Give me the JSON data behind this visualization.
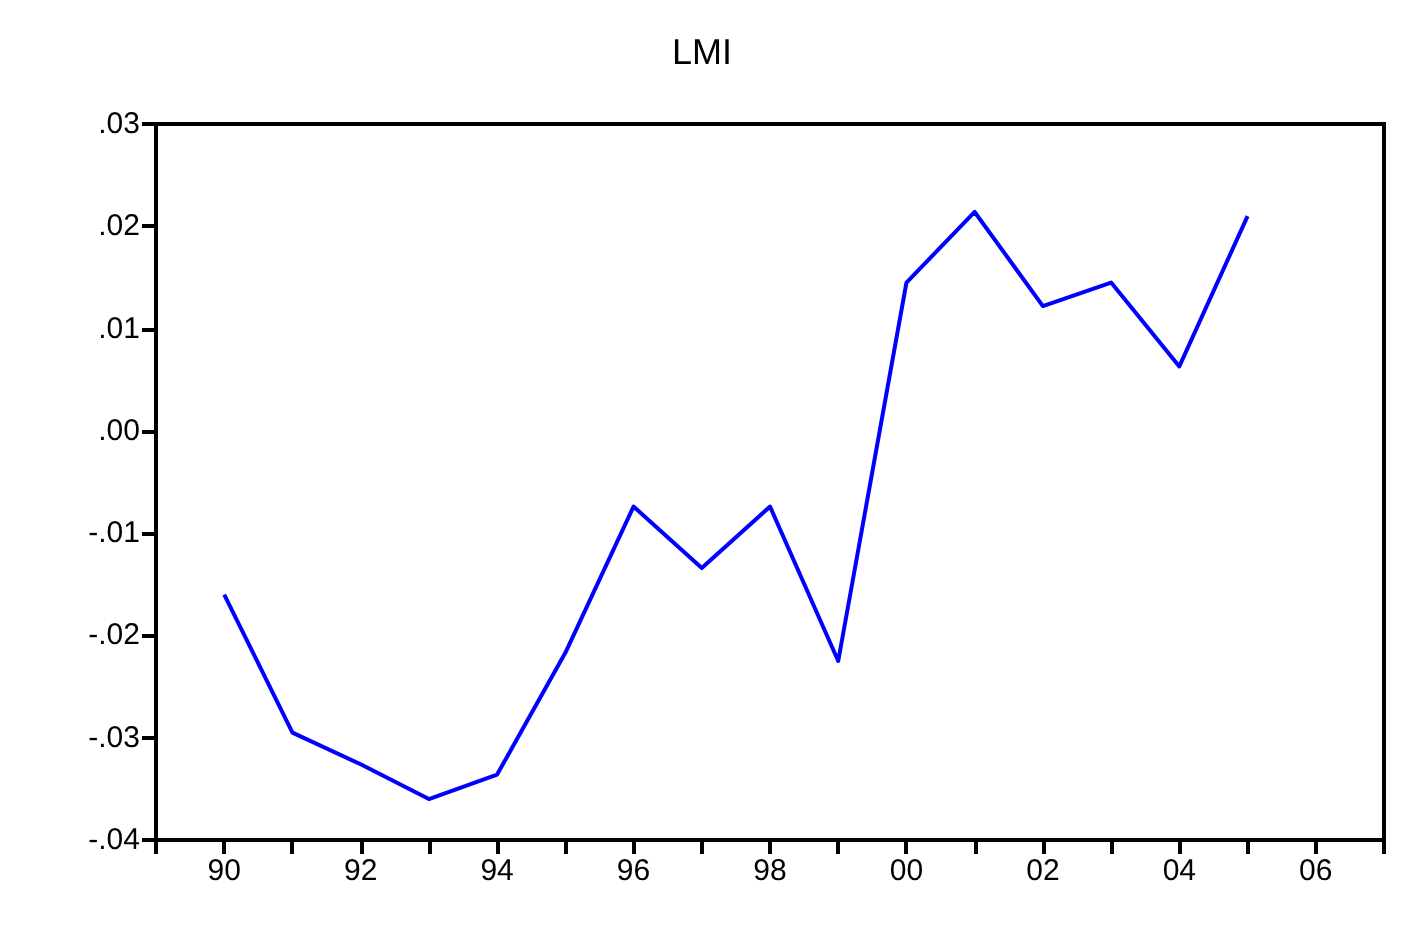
{
  "chart_data": {
    "type": "line",
    "title": "LMI",
    "x": [
      1990,
      1991,
      1992,
      1993,
      1994,
      1995,
      1996,
      1997,
      1998,
      1999,
      2000,
      2001,
      2002,
      2003,
      2004,
      2005
    ],
    "series": [
      {
        "color": "#0000ff",
        "values": [
          -0.016,
          -0.0295,
          -0.0326,
          -0.036,
          -0.0336,
          -0.0217,
          -0.0074,
          -0.0134,
          -0.0074,
          -0.0225,
          0.0145,
          0.0214,
          0.0122,
          0.0145,
          0.0063,
          0.021
        ]
      }
    ],
    "xlim": [
      1989,
      2007
    ],
    "xticks": [
      {
        "value": 1989,
        "label": null
      },
      {
        "value": 1990,
        "label": "90"
      },
      {
        "value": 1991,
        "label": null
      },
      {
        "value": 1992,
        "label": "92"
      },
      {
        "value": 1993,
        "label": null
      },
      {
        "value": 1994,
        "label": "94"
      },
      {
        "value": 1995,
        "label": null
      },
      {
        "value": 1996,
        "label": "96"
      },
      {
        "value": 1997,
        "label": null
      },
      {
        "value": 1998,
        "label": "98"
      },
      {
        "value": 1999,
        "label": null
      },
      {
        "value": 2000,
        "label": "00"
      },
      {
        "value": 2001,
        "label": null
      },
      {
        "value": 2002,
        "label": "02"
      },
      {
        "value": 2003,
        "label": null
      },
      {
        "value": 2004,
        "label": "04"
      },
      {
        "value": 2005,
        "label": null
      },
      {
        "value": 2006,
        "label": "06"
      },
      {
        "value": 2007,
        "label": null
      }
    ],
    "ylim": [
      -0.04,
      0.03
    ],
    "yticks": [
      {
        "value": -0.04,
        "label": "-.04"
      },
      {
        "value": -0.03,
        "label": "-.03"
      },
      {
        "value": -0.02,
        "label": "-.02"
      },
      {
        "value": -0.01,
        "label": "-.01"
      },
      {
        "value": 0,
        "label": ".00"
      },
      {
        "value": 0.01,
        "label": ".01"
      },
      {
        "value": 0.02,
        "label": ".02"
      },
      {
        "value": 0.03,
        "label": ".03"
      }
    ],
    "grid": false,
    "marker": "none",
    "line_style": "solid"
  }
}
